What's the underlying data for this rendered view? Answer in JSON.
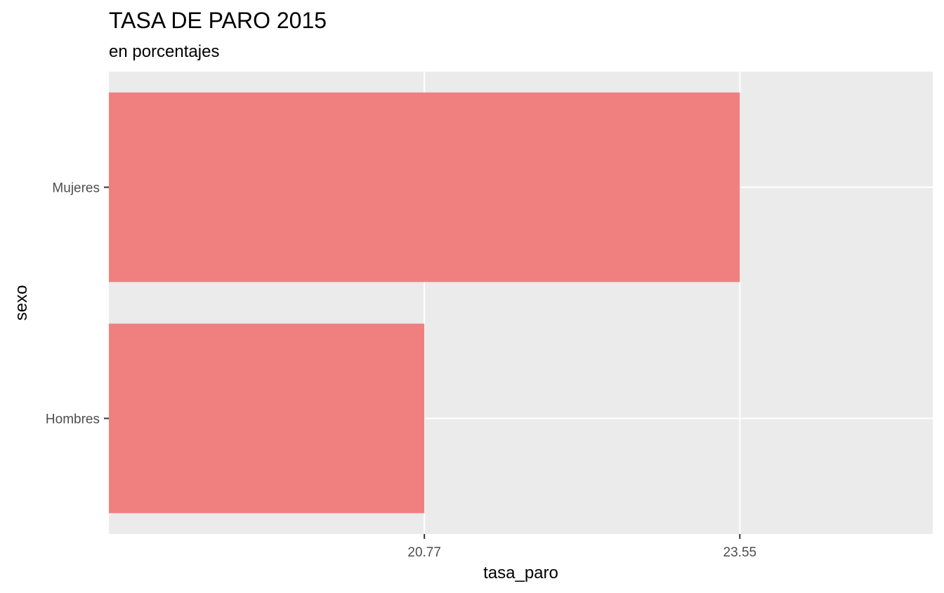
{
  "chart_data": {
    "type": "bar",
    "orientation": "horizontal",
    "title": "TASA DE PARO 2015",
    "subtitle": "en porcentajes",
    "xlabel": "tasa_paro",
    "ylabel": "sexo",
    "categories": [
      "Hombres",
      "Mujeres"
    ],
    "values": [
      20.77,
      23.55
    ],
    "x_ticks": [
      "20.77",
      "23.55"
    ],
    "x_tick_values": [
      20.77,
      23.55
    ],
    "xlim": [
      17.99,
      25.25
    ],
    "grid": true,
    "legend": "none",
    "colors": {
      "bar": "#F08080",
      "panel": "#EBEBEB",
      "grid": "#FFFFFF",
      "text": "#000000",
      "tick_text": "#4D4D4D"
    }
  }
}
